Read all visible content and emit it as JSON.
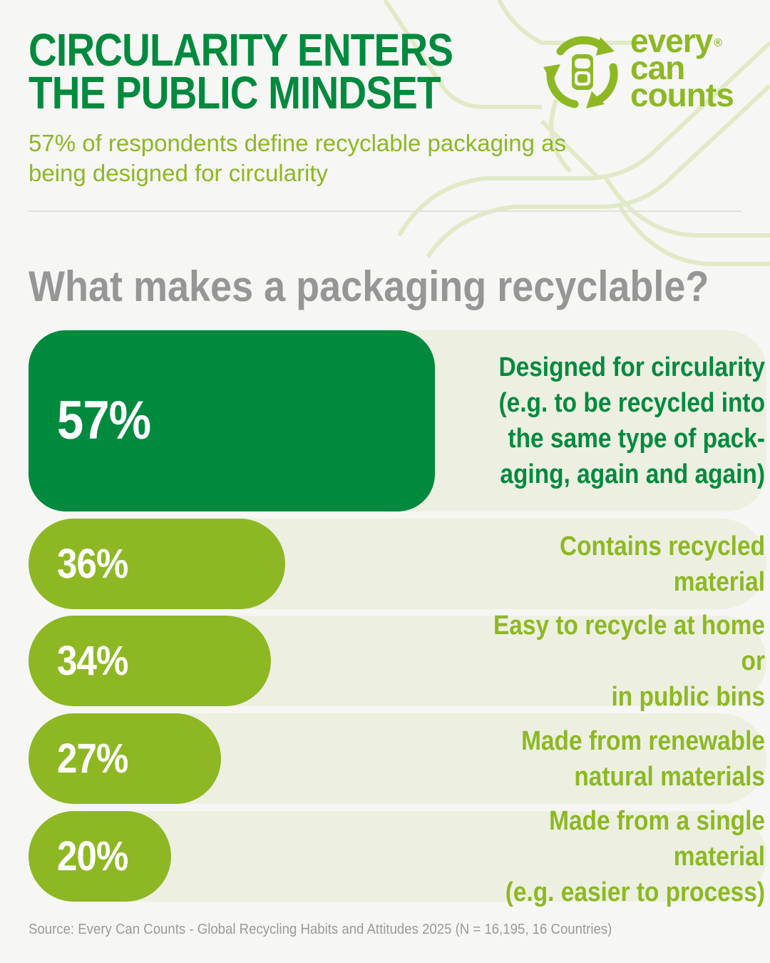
{
  "header": {
    "title_line1": "CIRCULARITY ENTERS",
    "title_line2": "THE PUBLIC MINDSET",
    "subtitle": "57% of respondents define recyclable packaging as being designed for circularity"
  },
  "logo": {
    "line1": "every",
    "line2": "can",
    "line3": "counts",
    "registered": "®",
    "icon": "recycle-arrows-can-icon"
  },
  "question": "What makes a packaging recyclable?",
  "colors": {
    "dark_green": "#008a3e",
    "lime_green": "#8db824",
    "track": "#edf0e1",
    "gray_text": "#969696"
  },
  "chart_data": {
    "type": "bar",
    "orientation": "horizontal",
    "title": "What makes a packaging recyclable?",
    "xlim": [
      0,
      100
    ],
    "grid": false,
    "categories": [
      "Designed for circularity (e.g. to be recycled into the same type of pack-aging, again and again)",
      "Contains recycled material",
      "Easy to recycle at home or in public bins",
      "Made from renewable natural materials",
      "Made from a single material (e.g. easier to process)"
    ],
    "values": [
      57,
      36,
      34,
      27,
      20
    ],
    "value_labels": [
      "57%",
      "36%",
      "34%",
      "27%",
      "20%"
    ],
    "label_lines": [
      [
        "Designed for circularity",
        "(e.g. to be recycled into",
        "the same type of pack-",
        "aging, again and again)"
      ],
      [
        "Contains recycled material"
      ],
      [
        "Easy to recycle at home or",
        "in public bins"
      ],
      [
        "Made from renewable",
        "natural materials"
      ],
      [
        "Made from a single material",
        "(e.g. easier to process)"
      ]
    ]
  },
  "source": "Source: Every Can Counts - Global Recycling Habits and Attitudes 2025 (N = 16,195, 16 Countries)"
}
